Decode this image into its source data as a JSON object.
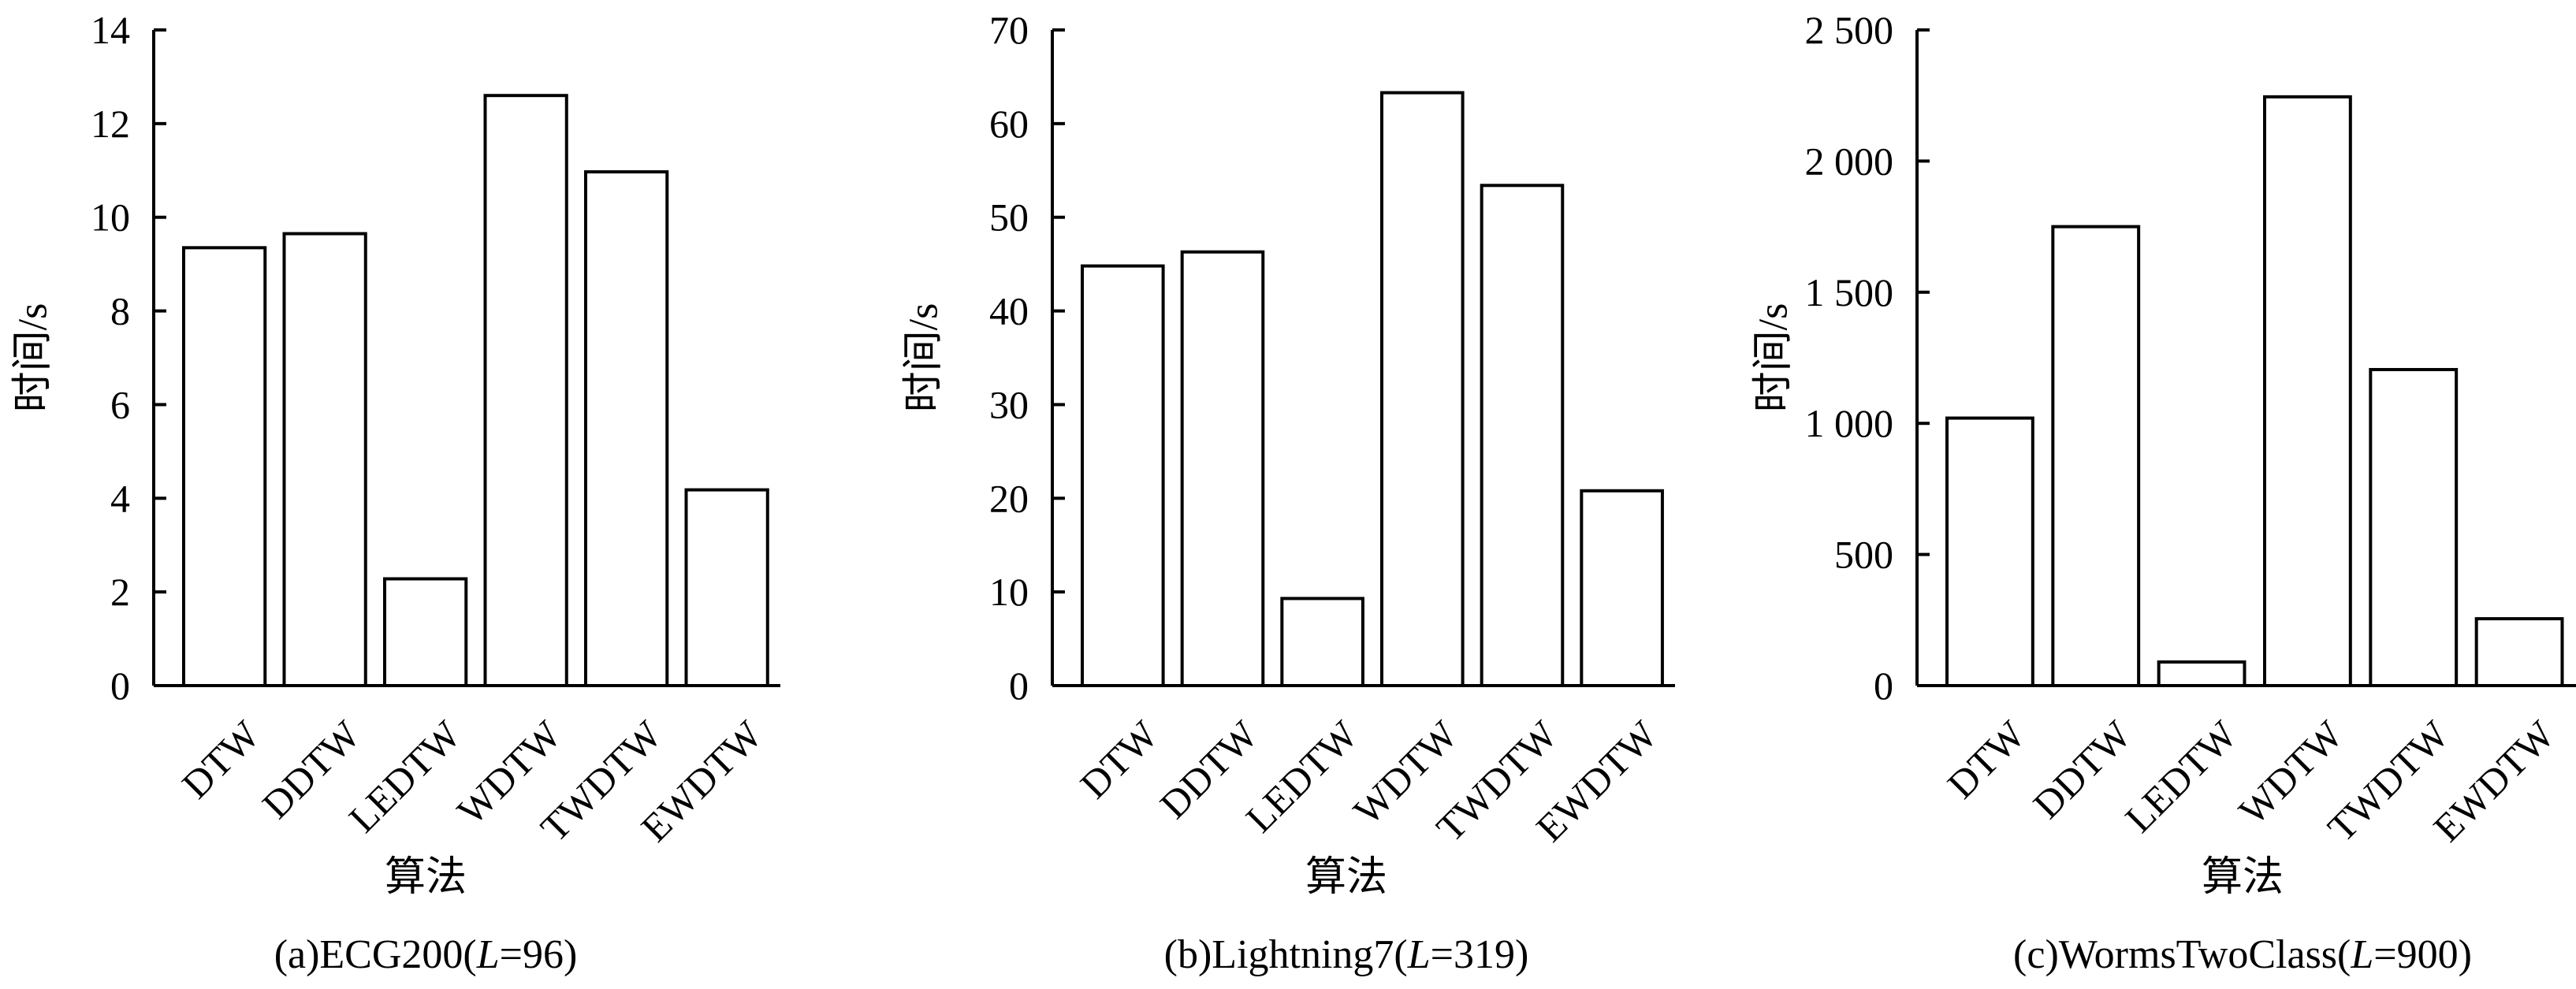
{
  "chart_data": [
    {
      "type": "bar",
      "title": "",
      "caption": "(a)ECG200(L=96)",
      "caption_parts": [
        "(a)ECG200(",
        "L",
        "=96)"
      ],
      "xlabel": "算法",
      "ylabel": "时间/s",
      "categories": [
        "DTW",
        "DDTW",
        "LEDTW",
        "WDTW",
        "TWDTW",
        "EWDTW"
      ],
      "values": [
        9.35,
        9.65,
        2.28,
        12.6,
        10.97,
        4.18
      ],
      "ylim": [
        0,
        14
      ],
      "yticks": [
        0,
        2,
        4,
        6,
        8,
        10,
        12,
        14
      ],
      "ytick_labels": [
        "0",
        "2",
        "4",
        "6",
        "8",
        "10",
        "12",
        "14"
      ],
      "grid": false,
      "bar_fill": "#ffffff",
      "bar_stroke": "#000000"
    },
    {
      "type": "bar",
      "title": "",
      "caption": "(b)Lightning7(L=319)",
      "caption_parts": [
        "(b)Lightning7(",
        "L",
        "=319)"
      ],
      "xlabel": "算法",
      "ylabel": "时间/s",
      "categories": [
        "DTW",
        "DDTW",
        "LEDTW",
        "WDTW",
        "TWDTW",
        "EWDTW"
      ],
      "values": [
        44.8,
        46.3,
        9.3,
        63.3,
        53.4,
        20.8
      ],
      "ylim": [
        0,
        70
      ],
      "yticks": [
        0,
        10,
        20,
        30,
        40,
        50,
        60,
        70
      ],
      "ytick_labels": [
        "0",
        "10",
        "20",
        "30",
        "40",
        "50",
        "60",
        "70"
      ],
      "grid": false,
      "bar_fill": "#ffffff",
      "bar_stroke": "#000000"
    },
    {
      "type": "bar",
      "title": "",
      "caption": "(c)WormsTwoClass(L=900)",
      "caption_parts": [
        "(c)WormsTwoClass(",
        "L",
        "=900)"
      ],
      "xlabel": "算法",
      "ylabel": "时间/s",
      "categories": [
        "DTW",
        "DDTW",
        "LEDTW",
        "WDTW",
        "TWDTW",
        "EWDTW"
      ],
      "values": [
        1020,
        1750,
        90,
        2245,
        1205,
        255
      ],
      "ylim": [
        0,
        2500
      ],
      "yticks": [
        0,
        500,
        1000,
        1500,
        2000,
        2500
      ],
      "ytick_labels": [
        "0",
        "500",
        "1 000",
        "1 500",
        "2 000",
        "2 500"
      ],
      "grid": false,
      "bar_fill": "#ffffff",
      "bar_stroke": "#000000"
    }
  ]
}
